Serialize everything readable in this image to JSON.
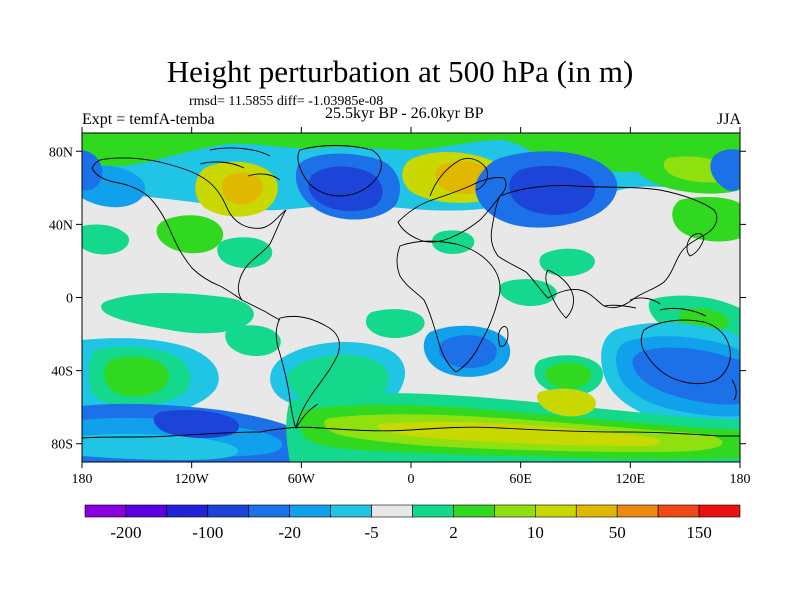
{
  "title": "Height perturbation at 500 hPa (in m)",
  "stats": "rmsd= 11.5855 diff= -1.03985e-08",
  "experiment": "Expt = temfA-temba",
  "period": "25.5kyr BP - 26.0kyr BP",
  "season": "JJA",
  "x_ticks": [
    "180",
    "120W",
    "60W",
    "0",
    "60E",
    "120E",
    "180"
  ],
  "y_ticks": [
    "80N",
    "40N",
    "0",
    "40S",
    "80S"
  ],
  "colorbar": {
    "labels": [
      "-200",
      "-100",
      "-20",
      "-5",
      "2",
      "10",
      "50",
      "150"
    ],
    "colors": [
      "#8a00dc",
      "#5a00e0",
      "#2222d8",
      "#1c44d8",
      "#1c70e8",
      "#10a0ec",
      "#20c4e4",
      "#e8e8e8",
      "#14d88c",
      "#30d820",
      "#90e010",
      "#c8d800",
      "#e0b800",
      "#ec8a10",
      "#f04818",
      "#e81010"
    ]
  },
  "field_colors": {
    "neutral": "#e8e8e8",
    "deep_low": "#1c44d8",
    "low": "#1c70e8",
    "mild_low": "#10a0ec",
    "weak_low": "#20c4e4",
    "weak_high": "#14d88c",
    "mild_high": "#30d820",
    "high": "#90e010",
    "strong_high": "#c8d800",
    "peak_high": "#e0b800"
  }
}
